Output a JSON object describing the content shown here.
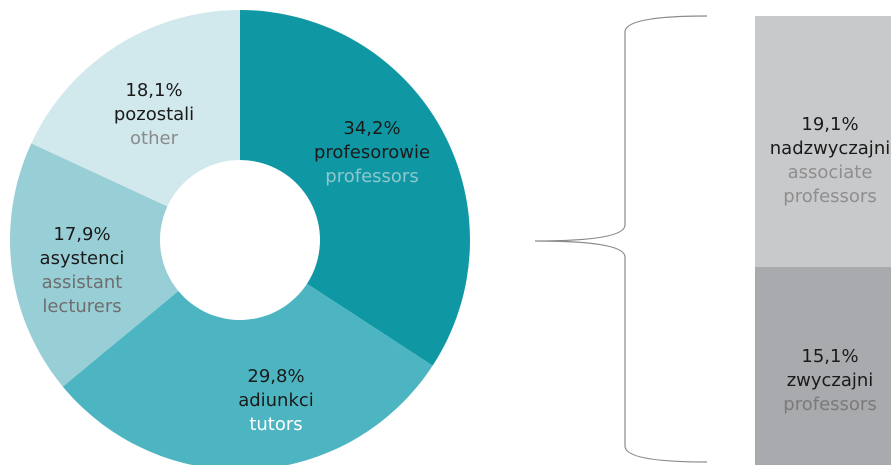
{
  "chart_data": [
    {
      "type": "pie",
      "title": "",
      "slices": [
        {
          "value": 34.2,
          "pct_label": "34,2%",
          "label_pl": "profesorowie",
          "label_en": [
            "professors"
          ],
          "color": "#0f98a3",
          "en_color": "#8ec7cc"
        },
        {
          "value": 29.8,
          "pct_label": "29,8%",
          "label_pl": "adiunkci",
          "label_en": [
            "tutors"
          ],
          "color": "#4db5c1",
          "en_color": "#ffffff"
        },
        {
          "value": 17.9,
          "pct_label": "17,9%",
          "label_pl": "asystenci",
          "label_en": [
            "assistant",
            "lecturers"
          ],
          "color": "#98ced5",
          "en_color": "#6e6e6e"
        },
        {
          "value": 18.1,
          "pct_label": "18,1%",
          "label_pl": "pozostali",
          "label_en": [
            "other"
          ],
          "color": "#d1e8ed",
          "en_color": "#8a8a8a"
        }
      ]
    },
    {
      "type": "bar",
      "stacked": true,
      "title": "",
      "breakdown_of": "profesorowie",
      "segments": [
        {
          "value": 19.1,
          "pct_label": "19,1%",
          "label_pl": "nadzwyczajni",
          "label_en": [
            "associate",
            "professors"
          ],
          "color": "#c8c9cb",
          "en_color": "#8e8e8e"
        },
        {
          "value": 15.1,
          "pct_label": "15,1%",
          "label_pl": "zwyczajni",
          "label_en": [
            "professors"
          ],
          "color": "#a9aaad",
          "en_color": "#7a7a7a"
        }
      ]
    }
  ],
  "colors": {
    "text_dark": "#1a1a1a",
    "brace": "#8a8a8a",
    "background": "#ffffff"
  }
}
